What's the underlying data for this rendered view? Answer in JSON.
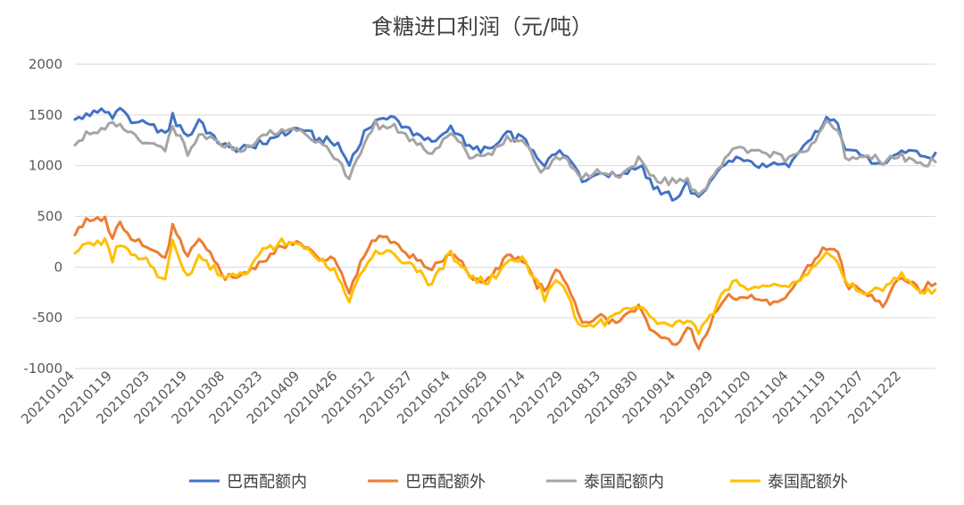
{
  "chart_data": {
    "type": "line",
    "title": "食糖进口利润（元/吨）",
    "xlabel": "",
    "ylabel": "",
    "ylim": [
      -1000,
      2000
    ],
    "yticks": [
      -1000,
      -500,
      0,
      500,
      1000,
      1500,
      2000
    ],
    "ytick_labels": [
      "-1000",
      "-500",
      "0",
      "500",
      "1000",
      "1500",
      "2000"
    ],
    "grid": true,
    "legend_position": "bottom",
    "x_tick_labels": [
      "20210104",
      "20210119",
      "20210203",
      "20210219",
      "20210308",
      "20210323",
      "20210409",
      "20210426",
      "20210512",
      "20210527",
      "20210614",
      "20210629",
      "20210714",
      "20210729",
      "20210813",
      "20210830",
      "20210914",
      "20210929",
      "20211020",
      "20211104",
      "20211119",
      "20211207",
      "20211222"
    ],
    "x_tick_index": [
      0,
      10,
      20,
      30,
      40,
      50,
      60,
      70,
      80,
      90,
      100,
      110,
      120,
      130,
      140,
      150,
      160,
      170,
      180,
      190,
      200,
      210,
      220
    ],
    "n_points": 230,
    "anchor_index": [
      0,
      3,
      8,
      10,
      12,
      15,
      20,
      24,
      26,
      30,
      33,
      40,
      45,
      50,
      55,
      60,
      65,
      70,
      73,
      76,
      80,
      85,
      90,
      95,
      100,
      105,
      110,
      115,
      120,
      123,
      125,
      128,
      130,
      135,
      140,
      145,
      150,
      155,
      160,
      163,
      166,
      170,
      172,
      175,
      180,
      185,
      190,
      195,
      200,
      203,
      205,
      210,
      215,
      220,
      225,
      229
    ],
    "series": [
      {
        "name": "巴西配额内",
        "color": "#4472C4",
        "anchor_values": [
          1450,
          1500,
          1550,
          1480,
          1560,
          1450,
          1380,
          1300,
          1480,
          1280,
          1440,
          1180,
          1160,
          1220,
          1330,
          1360,
          1260,
          1220,
          1000,
          1250,
          1470,
          1450,
          1330,
          1230,
          1370,
          1190,
          1150,
          1300,
          1260,
          1080,
          1010,
          1150,
          1140,
          870,
          920,
          890,
          1010,
          760,
          690,
          830,
          650,
          880,
          1000,
          1080,
          1030,
          1000,
          1030,
          1200,
          1450,
          1400,
          1150,
          1120,
          1000,
          1150,
          1100,
          1090
        ]
      },
      {
        "name": "巴西配额外",
        "color": "#ED7D31",
        "anchor_values": [
          350,
          450,
          480,
          280,
          450,
          300,
          200,
          100,
          400,
          100,
          300,
          -100,
          -50,
          50,
          200,
          250,
          80,
          50,
          -250,
          50,
          300,
          250,
          80,
          -30,
          170,
          -90,
          -130,
          130,
          50,
          -180,
          -250,
          -50,
          -100,
          -550,
          -500,
          -560,
          -400,
          -690,
          -770,
          -600,
          -800,
          -500,
          -350,
          -290,
          -300,
          -350,
          -300,
          0,
          200,
          150,
          -150,
          -230,
          -350,
          -100,
          -220,
          -170
        ]
      },
      {
        "name": "泰国配额内",
        "color": "#A5A5A5",
        "anchor_values": [
          1250,
          1300,
          1350,
          1400,
          1380,
          1300,
          1200,
          1150,
          1400,
          1100,
          1300,
          1200,
          1150,
          1280,
          1350,
          1350,
          1200,
          1050,
          900,
          1150,
          1400,
          1380,
          1250,
          1100,
          1330,
          1100,
          1100,
          1250,
          1250,
          1000,
          930,
          1080,
          1100,
          870,
          950,
          890,
          1050,
          850,
          830,
          880,
          700,
          900,
          1000,
          1200,
          1150,
          1100,
          1080,
          1150,
          1420,
          1350,
          1100,
          1080,
          1050,
          1100,
          1020,
          1050
        ]
      },
      {
        "name": "泰国配额外",
        "color": "#FFC000",
        "anchor_values": [
          150,
          230,
          250,
          80,
          250,
          100,
          30,
          -150,
          250,
          -80,
          100,
          -100,
          -50,
          150,
          250,
          220,
          100,
          -100,
          -350,
          -50,
          150,
          130,
          -30,
          -150,
          150,
          -100,
          -150,
          50,
          50,
          -150,
          -300,
          -150,
          -200,
          -600,
          -550,
          -450,
          -400,
          -550,
          -560,
          -500,
          -650,
          -450,
          -300,
          -150,
          -250,
          -150,
          -200,
          -50,
          150,
          50,
          -130,
          -280,
          -200,
          -80,
          -250,
          -250
        ]
      }
    ]
  }
}
